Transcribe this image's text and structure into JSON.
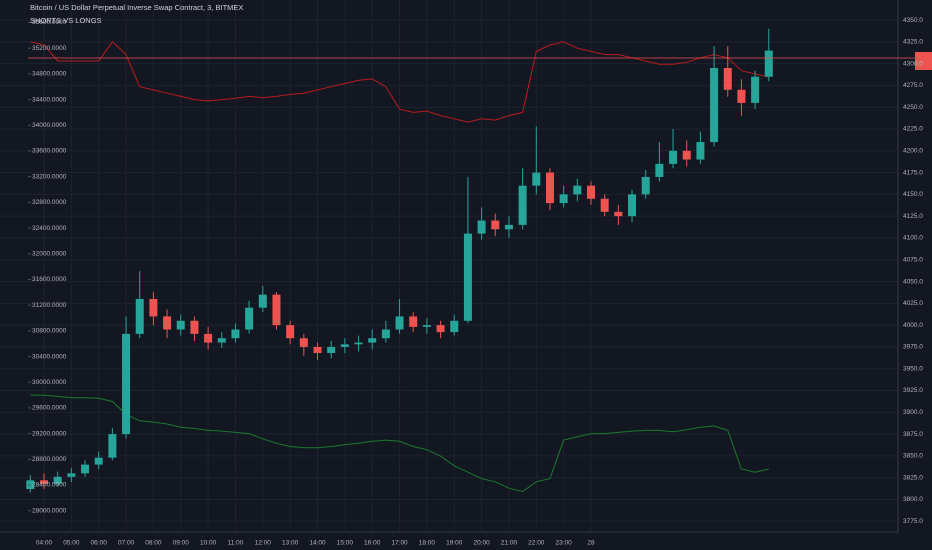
{
  "chart_data": {
    "type": "candlestick",
    "title": "Bitcoin / US Dollar Perpetual Inverse Swap Contract, 3, BITMEX",
    "subtitle": "SHORTS VS LONGS",
    "categories": [
      null,
      "04:00",
      null,
      "05:00",
      null,
      "06:00",
      null,
      "07:00",
      null,
      "08:00",
      null,
      "09:00",
      null,
      "10:00",
      null,
      "11:00",
      null,
      "12:00",
      null,
      "13:00",
      null,
      "14:00",
      null,
      "15:00",
      null,
      "16:00",
      null,
      "17:00",
      null,
      "18:00",
      null,
      "19:00",
      null,
      "20:00",
      null,
      "21:00",
      null,
      "22:00",
      null,
      "23:00",
      null,
      "28",
      null,
      null,
      null,
      null,
      null,
      null,
      null,
      null,
      null,
      null,
      null,
      null,
      null
    ],
    "axis": "y2",
    "up_color": "#26a69a",
    "down_color": "#ef5350",
    "open": [
      3812,
      3822,
      3818,
      3826,
      3830,
      3840,
      3848,
      3875,
      3990,
      4030,
      4010,
      3995,
      4005,
      3990,
      3980,
      3985,
      3995,
      4020,
      4035,
      4000,
      3985,
      3975,
      3968,
      3975,
      3978,
      3980,
      3985,
      3995,
      4010,
      3998,
      4000,
      3992,
      4005,
      4105,
      4120,
      4110,
      4115,
      4160,
      4175,
      4140,
      4150,
      4160,
      4145,
      4130,
      4125,
      4150,
      4170,
      4185,
      4200,
      4190,
      4210,
      4295,
      4270,
      4255,
      4285
    ],
    "high": [
      3828,
      3830,
      3832,
      3836,
      3845,
      3855,
      3882,
      4010,
      4062,
      4038,
      4018,
      4012,
      4010,
      3998,
      3992,
      4002,
      4028,
      4045,
      4038,
      4005,
      3990,
      3980,
      3982,
      3985,
      3988,
      3995,
      4005,
      4030,
      4015,
      4008,
      4005,
      4012,
      4170,
      4135,
      4128,
      4125,
      4180,
      4228,
      4180,
      4160,
      4168,
      4165,
      4150,
      4138,
      4155,
      4178,
      4210,
      4225,
      4212,
      4222,
      4320,
      4320,
      4282,
      4292,
      4340
    ],
    "low": [
      3808,
      3812,
      3815,
      3820,
      3826,
      3835,
      3845,
      3870,
      3985,
      4000,
      3985,
      3988,
      3982,
      3972,
      3974,
      3980,
      3990,
      4015,
      3995,
      3978,
      3965,
      3960,
      3962,
      3968,
      3970,
      3972,
      3980,
      3990,
      3992,
      3990,
      3985,
      3988,
      4002,
      4098,
      4102,
      4100,
      4110,
      4150,
      4132,
      4135,
      4142,
      4138,
      4125,
      4115,
      4118,
      4145,
      4165,
      4180,
      4182,
      4185,
      4205,
      4262,
      4240,
      4248,
      4280
    ],
    "close": [
      3822,
      3818,
      3826,
      3830,
      3840,
      3848,
      3875,
      3990,
      4030,
      4010,
      3995,
      4005,
      3990,
      3980,
      3985,
      3995,
      4020,
      4035,
      4000,
      3985,
      3975,
      3968,
      3975,
      3978,
      3980,
      3985,
      3995,
      4010,
      3998,
      4000,
      3992,
      4005,
      4105,
      4120,
      4110,
      4115,
      4160,
      4175,
      4140,
      4150,
      4160,
      4145,
      4130,
      4125,
      4150,
      4170,
      4185,
      4200,
      4190,
      4210,
      4295,
      4270,
      4255,
      4285,
      4315
    ],
    "series": [
      {
        "color": "#b71c1c",
        "values": [
          35300,
          35250,
          35000,
          35000,
          35000,
          35000,
          35300,
          35100,
          34600,
          34550,
          34500,
          34450,
          34400,
          34380,
          34400,
          34420,
          34450,
          34430,
          34450,
          34480,
          34500,
          34550,
          34600,
          34650,
          34700,
          34720,
          34600,
          34250,
          34200,
          34220,
          34150,
          34100,
          34050,
          34100,
          34080,
          34150,
          34200,
          35150,
          35250,
          35300,
          35200,
          35150,
          35100,
          35100,
          35050,
          35000,
          34950,
          34950,
          34980,
          35050,
          35100,
          35050,
          34850,
          34800,
          34750
        ]
      },
      {
        "color": "#1b7a2c",
        "values": [
          29800,
          29800,
          29780,
          29760,
          29760,
          29750,
          29700,
          29500,
          29400,
          29380,
          29350,
          29300,
          29280,
          29250,
          29240,
          29220,
          29200,
          29120,
          29050,
          29000,
          28980,
          28980,
          29000,
          29030,
          29050,
          29080,
          29100,
          29080,
          29000,
          28950,
          28850,
          28700,
          28600,
          28500,
          28450,
          28350,
          28300,
          28450,
          28500,
          29100,
          29150,
          29200,
          29200,
          29220,
          29240,
          29250,
          29250,
          29230,
          29260,
          29300,
          29320,
          29250,
          28650,
          28600,
          28650
        ]
      }
    ],
    "ylim": [
      27700,
      35950
    ],
    "yticks": [
      {
        "value": 28000,
        "label": "28000.0000"
      },
      {
        "value": 28400,
        "label": "28400.0000"
      },
      {
        "value": 28800,
        "label": "28800.0000"
      },
      {
        "value": 29200,
        "label": "29200.0000"
      },
      {
        "value": 29600,
        "label": "29600.0000"
      },
      {
        "value": 30000,
        "label": "30000.0000"
      },
      {
        "value": 30400,
        "label": "30400.0000"
      },
      {
        "value": 30800,
        "label": "30800.0000"
      },
      {
        "value": 31200,
        "label": "31200.0000"
      },
      {
        "value": 31600,
        "label": "31600.0000"
      },
      {
        "value": 32000,
        "label": "32000.0000"
      },
      {
        "value": 32400,
        "label": "32400.0000"
      },
      {
        "value": 32800,
        "label": "32800.0000"
      },
      {
        "value": 33200,
        "label": "33200.0000"
      },
      {
        "value": 33600,
        "label": "33600.0000"
      },
      {
        "value": 34000,
        "label": "34000.0000"
      },
      {
        "value": 34400,
        "label": "34400.0000"
      },
      {
        "value": 34800,
        "label": "34800.0000"
      },
      {
        "value": 35200,
        "label": "35200.0000"
      },
      {
        "value": 35600,
        "label": "35600.0000"
      }
    ],
    "y2lim": [
      3765,
      4373
    ],
    "y2ticks": [
      {
        "value": 3775,
        "label": "3775.0"
      },
      {
        "value": 3800,
        "label": "3800.0"
      },
      {
        "value": 3825,
        "label": "3825.0"
      },
      {
        "value": 3850,
        "label": "3850.0"
      },
      {
        "value": 3875,
        "label": "3875.0"
      },
      {
        "value": 3900,
        "label": "3900.0"
      },
      {
        "value": 3925,
        "label": "3925.0"
      },
      {
        "value": 3950,
        "label": "3950.0"
      },
      {
        "value": 3975,
        "label": "3975.0"
      },
      {
        "value": 4000,
        "label": "4000.0"
      },
      {
        "value": 4025,
        "label": "4025.0"
      },
      {
        "value": 4050,
        "label": "4050.0"
      },
      {
        "value": 4075,
        "label": "4075.0"
      },
      {
        "value": 4100,
        "label": "4100.0"
      },
      {
        "value": 4125,
        "label": "4125.0"
      },
      {
        "value": 4150,
        "label": "4150.0"
      },
      {
        "value": 4175,
        "label": "4175.0"
      },
      {
        "value": 4200,
        "label": "4200.0"
      },
      {
        "value": 4225,
        "label": "4225.0"
      },
      {
        "value": 4250,
        "label": "4250.0"
      },
      {
        "value": 4275,
        "label": "4275.0"
      },
      {
        "value": 4300,
        "label": "4300.0"
      },
      {
        "value": 4325,
        "label": "4325.0"
      },
      {
        "value": 4350,
        "label": "4350.0"
      }
    ],
    "grid": true
  }
}
